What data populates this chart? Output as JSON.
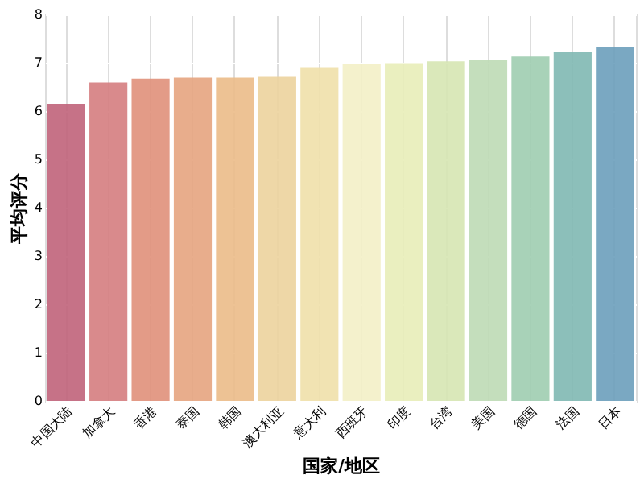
{
  "chart_data": {
    "type": "bar",
    "xlabel": "国家/地区",
    "ylabel": "平均评分",
    "categories": [
      "中国大陆",
      "加拿大",
      "香港",
      "泰国",
      "韩国",
      "澳大利亚",
      "意大利",
      "西班牙",
      "印度",
      "台湾",
      "美国",
      "德国",
      "法国",
      "日本"
    ],
    "values": [
      6.15,
      6.59,
      6.67,
      6.69,
      6.69,
      6.71,
      6.91,
      6.97,
      6.99,
      7.03,
      7.06,
      7.13,
      7.23,
      7.33
    ],
    "colors": [
      "#c0637a",
      "#d57d7f",
      "#e0907a",
      "#e6a47f",
      "#ebbb88",
      "#ecd39d",
      "#f0e0aa",
      "#f3f0c6",
      "#e8edb8",
      "#d6e5b2",
      "#bedab5",
      "#9fcdb0",
      "#7fb8b2",
      "#6c9fbb"
    ],
    "ylim": [
      0,
      8
    ],
    "yticks": [
      0,
      1,
      2,
      3,
      4,
      5,
      6,
      7,
      8
    ],
    "grid": true
  }
}
